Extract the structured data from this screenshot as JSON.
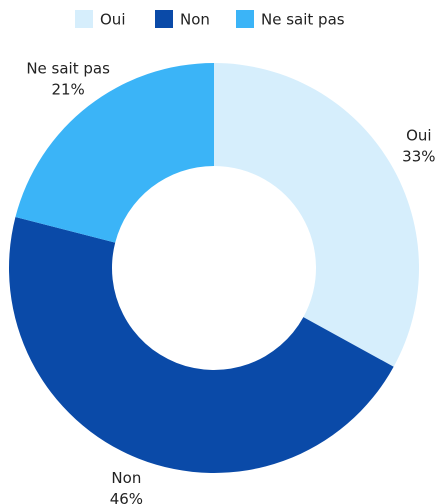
{
  "chart_data": {
    "type": "donut",
    "categories": [
      "Oui",
      "Non",
      "Ne sait pas"
    ],
    "values": [
      33,
      46,
      21
    ],
    "value_labels": [
      "33%",
      "46%",
      "21%"
    ],
    "colors": [
      "#d6eefc",
      "#0a4aa8",
      "#3bb4f7"
    ],
    "legend": "top"
  }
}
